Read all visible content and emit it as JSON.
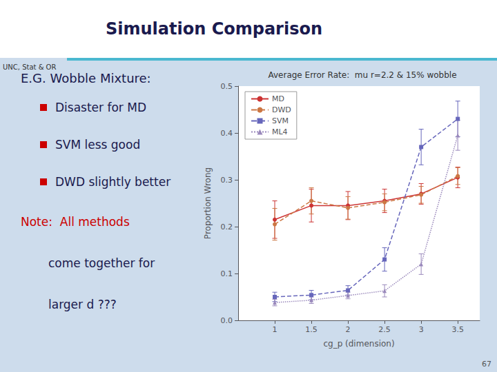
{
  "chart_data": {
    "type": "line",
    "title": "Average Error Rate:  mu r=2.2 & 15% wobble",
    "xlabel": "cg_p (dimension)",
    "ylabel": "Proportion Wrong",
    "x": [
      1,
      1.5,
      2,
      2.5,
      3,
      3.5
    ],
    "series": [
      {
        "name": "MD",
        "color": "#cc3333",
        "marker": "circle",
        "line_style": "solid",
        "values": [
          0.215,
          0.245,
          0.245,
          0.255,
          0.27,
          0.305
        ],
        "yerr": [
          0.04,
          0.035,
          0.03,
          0.025,
          0.022,
          0.022
        ]
      },
      {
        "name": "DWD",
        "color": "#cc7744",
        "marker": "circle",
        "line_style": "dashed",
        "values": [
          0.205,
          0.255,
          0.24,
          0.252,
          0.268,
          0.308
        ],
        "yerr": [
          0.034,
          0.028,
          0.024,
          0.018,
          0.018,
          0.018
        ]
      },
      {
        "name": "SVM",
        "color": "#6666bb",
        "marker": "square",
        "line_style": "dashed",
        "values": [
          0.05,
          0.054,
          0.064,
          0.13,
          0.37,
          0.43
        ],
        "yerr": [
          0.01,
          0.01,
          0.01,
          0.025,
          0.038,
          0.038
        ]
      },
      {
        "name": "ML4",
        "color": "#9988bb",
        "marker": "triangle",
        "line_style": "dotted",
        "values": [
          0.038,
          0.043,
          0.053,
          0.063,
          0.12,
          0.395
        ],
        "yerr": [
          0.007,
          0.007,
          0.007,
          0.013,
          0.022,
          0.032
        ]
      }
    ],
    "xlim": [
      0.5,
      3.8
    ],
    "xticks": [
      1,
      1.5,
      2,
      2.5,
      3,
      3.5
    ],
    "ylim": [
      0.0,
      0.5
    ],
    "yticks": [
      {
        "value": 0,
        "label": "0.0"
      },
      0.1,
      0.2,
      0.3,
      0.4,
      0.5
    ],
    "grid": false,
    "legend": "upper left",
    "annotations": [
      "Simulation Comparison",
      "UNC, Stat & OR",
      "E.G. Wobble Mixture:",
      "Disaster for MD",
      "SVM less good",
      "DWD slightly better",
      "Note:  All methods",
      "come together for",
      "larger d ???",
      "67"
    ]
  }
}
